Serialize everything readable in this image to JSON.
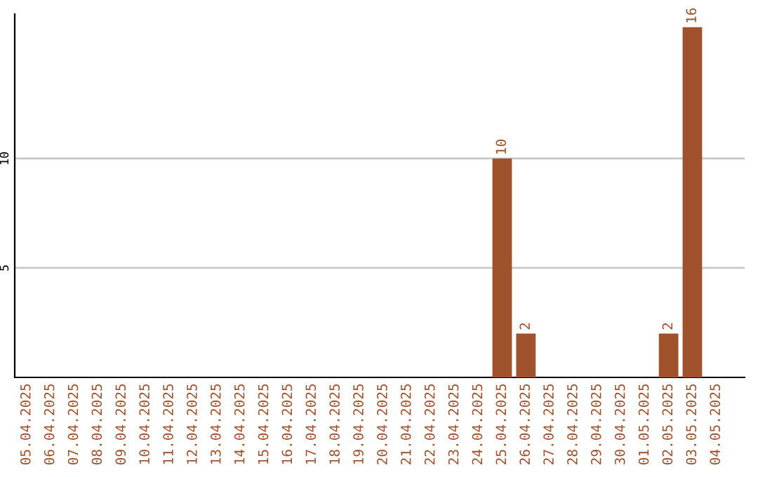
{
  "chart_data": {
    "type": "bar",
    "categories": [
      "05.04.2025",
      "06.04.2025",
      "07.04.2025",
      "08.04.2025",
      "09.04.2025",
      "10.04.2025",
      "11.04.2025",
      "12.04.2025",
      "13.04.2025",
      "14.04.2025",
      "15.04.2025",
      "16.04.2025",
      "17.04.2025",
      "18.04.2025",
      "19.04.2025",
      "20.04.2025",
      "21.04.2025",
      "22.04.2025",
      "23.04.2025",
      "24.04.2025",
      "25.04.2025",
      "26.04.2025",
      "27.04.2025",
      "28.04.2025",
      "29.04.2025",
      "30.04.2025",
      "01.05.2025",
      "02.05.2025",
      "03.05.2025",
      "04.05.2025"
    ],
    "values": [
      0,
      0,
      0,
      0,
      0,
      0,
      0,
      0,
      0,
      0,
      0,
      0,
      0,
      0,
      0,
      0,
      0,
      0,
      0,
      0,
      10,
      2,
      0,
      0,
      0,
      0,
      0,
      2,
      16,
      0
    ],
    "value_labels": [
      null,
      null,
      null,
      null,
      null,
      null,
      null,
      null,
      null,
      null,
      null,
      null,
      null,
      null,
      null,
      null,
      null,
      null,
      null,
      null,
      "10",
      "2",
      null,
      null,
      null,
      null,
      null,
      "2",
      "16",
      null
    ],
    "color": "#a0522d",
    "ylim": [
      0,
      16.6
    ],
    "yticks": [
      5,
      10
    ],
    "grid": "y"
  }
}
